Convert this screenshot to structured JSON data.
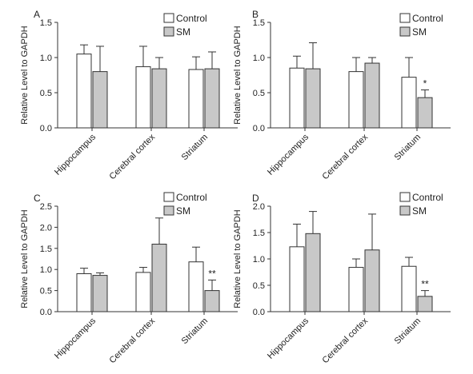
{
  "chart_data": [
    {
      "type": "bar",
      "panel_label": "A",
      "categories": [
        "Hippocampus",
        "Cerebral cortex",
        "Striatum"
      ],
      "ylabel": "Relative Level to GAPDH",
      "ylim": [
        0,
        1.5
      ],
      "yticks": [
        "0.0",
        "0.5",
        "1.0",
        "1.5"
      ],
      "series": [
        {
          "name": "Control",
          "values": [
            1.05,
            0.87,
            0.83
          ],
          "errors": [
            0.13,
            0.29,
            0.18
          ]
        },
        {
          "name": "SM",
          "values": [
            0.8,
            0.84,
            0.84
          ],
          "errors": [
            0.36,
            0.16,
            0.24
          ]
        }
      ],
      "annotations": [],
      "legend": "top-right",
      "grid": false
    },
    {
      "type": "bar",
      "panel_label": "B",
      "categories": [
        "Hippocampus",
        "Cerebral cortex",
        "Striatum"
      ],
      "ylabel": "Relative Level to GAPDH",
      "ylim": [
        0,
        1.5
      ],
      "yticks": [
        "0.0",
        "0.5",
        "1.0",
        "1.5"
      ],
      "series": [
        {
          "name": "Control",
          "values": [
            0.85,
            0.8,
            0.72
          ],
          "errors": [
            0.17,
            0.2,
            0.28
          ]
        },
        {
          "name": "SM",
          "values": [
            0.84,
            0.92,
            0.43
          ],
          "errors": [
            0.37,
            0.08,
            0.11
          ]
        }
      ],
      "annotations": [
        {
          "category": 2,
          "series": 1,
          "text": "*"
        }
      ],
      "legend": "top-right",
      "grid": false
    },
    {
      "type": "bar",
      "panel_label": "C",
      "categories": [
        "Hippocampus",
        "Cerebral cortex",
        "Striatum"
      ],
      "ylabel": "Relative Level to GAPDH",
      "ylim": [
        0,
        2.5
      ],
      "yticks": [
        "0.0",
        "0.5",
        "1.0",
        "1.5",
        "2.0",
        "2.5"
      ],
      "series": [
        {
          "name": "Control",
          "values": [
            0.9,
            0.93,
            1.18
          ],
          "errors": [
            0.13,
            0.12,
            0.35
          ]
        },
        {
          "name": "SM",
          "values": [
            0.86,
            1.6,
            0.5
          ],
          "errors": [
            0.06,
            0.62,
            0.25
          ]
        }
      ],
      "annotations": [
        {
          "category": 2,
          "series": 1,
          "text": "**"
        }
      ],
      "legend": "top-right",
      "grid": false
    },
    {
      "type": "bar",
      "panel_label": "D",
      "categories": [
        "Hippocampus",
        "Cerebral cortex",
        "Striatum"
      ],
      "ylabel": "Relative Level to GAPDH",
      "ylim": [
        0,
        2.0
      ],
      "yticks": [
        "0.0",
        "0.5",
        "1.0",
        "1.5",
        "2.0"
      ],
      "series": [
        {
          "name": "Control",
          "values": [
            1.23,
            0.84,
            0.86
          ],
          "errors": [
            0.43,
            0.16,
            0.17
          ]
        },
        {
          "name": "SM",
          "values": [
            1.48,
            1.17,
            0.29
          ],
          "errors": [
            0.42,
            0.68,
            0.11
          ]
        }
      ],
      "annotations": [
        {
          "category": 2,
          "series": 1,
          "text": "**"
        }
      ],
      "legend": "top-right",
      "grid": false
    }
  ],
  "colors": {
    "control_fill": "#ffffff",
    "sm_fill": "#c8c8c8",
    "stroke": "#333333"
  }
}
